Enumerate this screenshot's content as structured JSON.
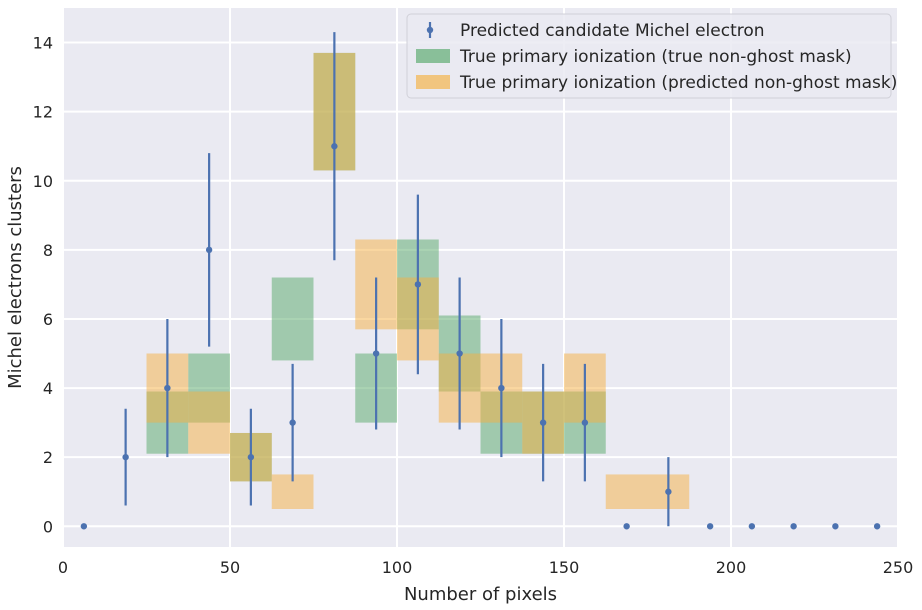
{
  "chart_data": {
    "type": "histogram-errorbar",
    "xlabel": "Number of pixels",
    "ylabel": "Michel electrons clusters",
    "xlim": [
      0,
      250
    ],
    "ylim": [
      -0.6,
      15
    ],
    "x_ticks": [
      0,
      50,
      100,
      150,
      200,
      250
    ],
    "y_ticks": [
      0,
      2,
      4,
      6,
      8,
      10,
      12,
      14
    ],
    "grid": true,
    "legend_position": "top-right",
    "colors": {
      "background": "#eaeaf2",
      "grid": "#ffffff",
      "errorbar": "#4c72b0",
      "green": "#55a868",
      "orange": "#f5b041"
    },
    "legend": [
      "Predicted candidate Michel electron",
      "True primary ionization (true non-ghost mask)",
      "True primary ionization (predicted non-ghost mask)"
    ],
    "series": [
      {
        "name": "Predicted candidate Michel electron",
        "kind": "errorbar",
        "x": [
          6.25,
          18.75,
          31.25,
          43.75,
          56.25,
          68.75,
          81.25,
          93.75,
          106.25,
          118.75,
          131.25,
          143.75,
          156.25,
          168.75,
          181.25,
          193.75,
          206.25,
          218.75,
          231.25,
          243.75
        ],
        "y": [
          0,
          2,
          4,
          8,
          2,
          3,
          11,
          5,
          7,
          5,
          4,
          3,
          3,
          0,
          1,
          0,
          0,
          0,
          0,
          0
        ],
        "yerr_low": [
          0,
          1.4,
          2.0,
          2.8,
          1.4,
          1.7,
          3.3,
          2.2,
          2.6,
          2.2,
          2.0,
          1.7,
          1.7,
          0,
          1.0,
          0,
          0,
          0,
          0,
          0
        ],
        "yerr_high": [
          0,
          1.4,
          2.0,
          2.8,
          1.4,
          1.7,
          3.3,
          2.2,
          2.6,
          2.2,
          2.0,
          1.7,
          1.7,
          0,
          1.0,
          0,
          0,
          0,
          0,
          0
        ]
      },
      {
        "name": "True primary ionization (true non-ghost mask)",
        "kind": "boxes",
        "bins": [
          {
            "x0": 25,
            "x1": 37.5,
            "ylow": 2.1,
            "yhigh": 3.9
          },
          {
            "x0": 37.5,
            "x1": 50,
            "ylow": 3.0,
            "yhigh": 5.0
          },
          {
            "x0": 50,
            "x1": 62.5,
            "ylow": 1.3,
            "yhigh": 2.7
          },
          {
            "x0": 62.5,
            "x1": 75,
            "ylow": 4.8,
            "yhigh": 7.2
          },
          {
            "x0": 75,
            "x1": 87.5,
            "ylow": 10.3,
            "yhigh": 13.7
          },
          {
            "x0": 87.5,
            "x1": 100,
            "ylow": 3.0,
            "yhigh": 5.0
          },
          {
            "x0": 100,
            "x1": 112.5,
            "ylow": 5.7,
            "yhigh": 8.3
          },
          {
            "x0": 112.5,
            "x1": 125,
            "ylow": 3.9,
            "yhigh": 6.1
          },
          {
            "x0": 125,
            "x1": 137.5,
            "ylow": 2.1,
            "yhigh": 3.9
          },
          {
            "x0": 137.5,
            "x1": 150,
            "ylow": 2.1,
            "yhigh": 3.9
          },
          {
            "x0": 150,
            "x1": 162.5,
            "ylow": 2.1,
            "yhigh": 3.9
          }
        ]
      },
      {
        "name": "True primary ionization (predicted non-ghost mask)",
        "kind": "boxes",
        "bins": [
          {
            "x0": 25,
            "x1": 37.5,
            "ylow": 3.0,
            "yhigh": 5.0
          },
          {
            "x0": 37.5,
            "x1": 50,
            "ylow": 2.1,
            "yhigh": 3.9
          },
          {
            "x0": 50,
            "x1": 62.5,
            "ylow": 1.3,
            "yhigh": 2.7
          },
          {
            "x0": 62.5,
            "x1": 75,
            "ylow": 0.5,
            "yhigh": 1.5
          },
          {
            "x0": 75,
            "x1": 87.5,
            "ylow": 10.3,
            "yhigh": 13.7
          },
          {
            "x0": 87.5,
            "x1": 100,
            "ylow": 5.7,
            "yhigh": 8.3
          },
          {
            "x0": 100,
            "x1": 112.5,
            "ylow": 4.8,
            "yhigh": 7.2
          },
          {
            "x0": 112.5,
            "x1": 125,
            "ylow": 3.0,
            "yhigh": 5.0
          },
          {
            "x0": 125,
            "x1": 137.5,
            "ylow": 3.0,
            "yhigh": 5.0
          },
          {
            "x0": 137.5,
            "x1": 150,
            "ylow": 2.1,
            "yhigh": 3.9
          },
          {
            "x0": 150,
            "x1": 162.5,
            "ylow": 3.0,
            "yhigh": 5.0
          },
          {
            "x0": 162.5,
            "x1": 187.5,
            "ylow": 0.5,
            "yhigh": 1.5
          }
        ]
      }
    ]
  }
}
